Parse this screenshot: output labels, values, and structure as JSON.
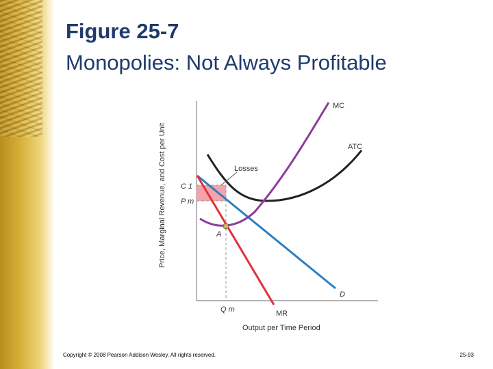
{
  "slide": {
    "title": "Figure 25-7",
    "subtitle": "Monopolies: Not Always Profitable",
    "copyright": "Copyright © 2008 Pearson Addison Wesley. All rights reserved.",
    "slide_number": "25-93"
  },
  "colors": {
    "title": "#1f3a6b",
    "mc": "#8e3a9c",
    "atc": "#222222",
    "demand": "#2b7fc0",
    "mr": "#e0313a",
    "losses_fill": "#f5a3aa"
  },
  "chart_data": {
    "type": "line",
    "xlabel": "Output per Time Period",
    "ylabel": "Price, Marginal Revenue, and Cost per Unit",
    "x_ticks": [
      "Q m"
    ],
    "y_ticks": [
      "C 1",
      "P m"
    ],
    "series": [
      {
        "name": "MC",
        "points": [
          [
            0.5,
            3.1
          ],
          [
            1.0,
            3.05
          ],
          [
            1.6,
            3.3
          ],
          [
            3.0,
            5.0
          ],
          [
            5.0,
            9.0
          ],
          [
            5.8,
            11.2
          ]
        ]
      },
      {
        "name": "ATC",
        "points": [
          [
            0.6,
            7.9
          ],
          [
            1.3,
            6.5
          ],
          [
            2.5,
            5.9
          ],
          [
            3.7,
            5.8
          ],
          [
            5.2,
            6.7
          ],
          [
            6.5,
            8.5
          ]
        ]
      },
      {
        "name": "D",
        "points": [
          [
            0.0,
            6.4
          ],
          [
            7.0,
            0.8
          ]
        ]
      },
      {
        "name": "MR",
        "points": [
          [
            0.0,
            6.4
          ],
          [
            3.5,
            0.0
          ]
        ]
      }
    ],
    "annotations": [
      "Losses",
      "A"
    ],
    "xlim": [
      0,
      8
    ],
    "ylim": [
      0,
      11.5
    ]
  }
}
